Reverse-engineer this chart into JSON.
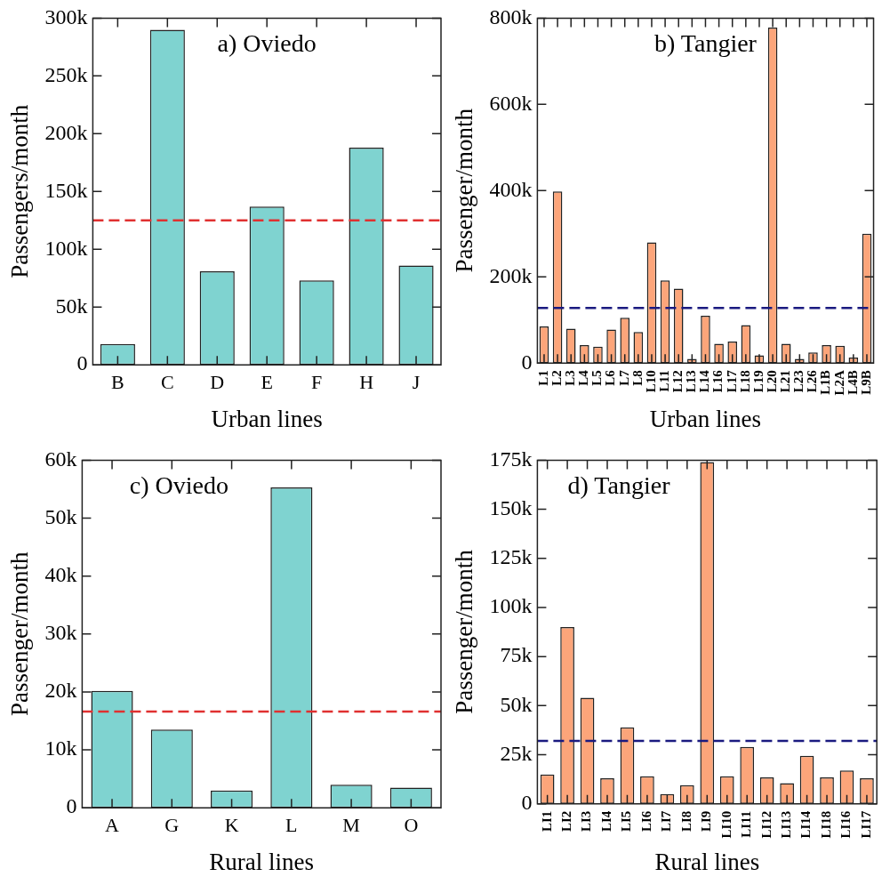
{
  "chart_data": [
    {
      "type": "bar",
      "title": "a) Oviedo",
      "xlabel": "Urban lines",
      "ylabel": "Passengers/month",
      "categories": [
        "B",
        "C",
        "D",
        "E",
        "F",
        "H",
        "J"
      ],
      "values": [
        18000,
        290000,
        81000,
        137000,
        73000,
        188000,
        86000
      ],
      "color": "#7fd3d0",
      "ylim": [
        0,
        300000
      ],
      "yticks": [
        {
          "value": 0,
          "label": "0"
        },
        {
          "value": 50000,
          "label": "50k"
        },
        {
          "value": 100000,
          "label": "100k"
        },
        {
          "value": 150000,
          "label": "150k"
        },
        {
          "value": 200000,
          "label": "200k"
        },
        {
          "value": 250000,
          "label": "250k"
        },
        {
          "value": 300000,
          "label": "300k"
        }
      ],
      "ref_lines": [
        {
          "axis": "y",
          "value": 125000,
          "color": "#e03030",
          "line_style": "dashed"
        }
      ]
    },
    {
      "type": "bar",
      "title": "b) Tangier",
      "xlabel": "Urban lines",
      "ylabel": "Passenger/month",
      "categories": [
        "L1",
        "L2",
        "L3",
        "L4",
        "L5",
        "L6",
        "L7",
        "L8",
        "L10",
        "L11",
        "L12",
        "L13",
        "L14",
        "L16",
        "L17",
        "L18",
        "L19",
        "L20",
        "L21",
        "L23",
        "L26",
        "L1B",
        "L2A",
        "L4B",
        "L9B"
      ],
      "values": [
        85000,
        398000,
        80000,
        42000,
        38000,
        78000,
        105000,
        72000,
        280000,
        192000,
        173000,
        10000,
        110000,
        45000,
        50000,
        88000,
        18000,
        778000,
        45000,
        10000,
        25000,
        42000,
        40000,
        13000,
        300000
      ],
      "color": "#fca57a",
      "ylim": [
        0,
        800000
      ],
      "yticks": [
        {
          "value": 0,
          "label": "0"
        },
        {
          "value": 200000,
          "label": "200k"
        },
        {
          "value": 400000,
          "label": "400k"
        },
        {
          "value": 600000,
          "label": "600k"
        },
        {
          "value": 800000,
          "label": "800k"
        }
      ],
      "ref_lines": [
        {
          "axis": "y",
          "value": 128000,
          "color": "#1a1a80",
          "line_style": "dashed"
        }
      ]
    },
    {
      "type": "bar",
      "title": "c) Oviedo",
      "xlabel": "Rural lines",
      "ylabel": "Passenger/month",
      "categories": [
        "A",
        "G",
        "K",
        "L",
        "M",
        "O"
      ],
      "values": [
        20200,
        13500,
        3000,
        55300,
        4000,
        3500
      ],
      "color": "#7fd3d0",
      "ylim": [
        0,
        60000
      ],
      "yticks": [
        {
          "value": 0,
          "label": "0"
        },
        {
          "value": 10000,
          "label": "10k"
        },
        {
          "value": 20000,
          "label": "20k"
        },
        {
          "value": 30000,
          "label": "30k"
        },
        {
          "value": 40000,
          "label": "40k"
        },
        {
          "value": 50000,
          "label": "50k"
        },
        {
          "value": 60000,
          "label": "60k"
        }
      ],
      "ref_lines": [
        {
          "axis": "y",
          "value": 16600,
          "color": "#e03030",
          "line_style": "dashed"
        }
      ]
    },
    {
      "type": "bar",
      "title": "d) Tangier",
      "xlabel": "Rural lines",
      "ylabel": "Passenger/month",
      "categories": [
        "LI1",
        "LI2",
        "LI3",
        "LI4",
        "LI5",
        "LI6",
        "LI7",
        "LI8",
        "LI9",
        "LI10",
        "LI11",
        "LI12",
        "LI13",
        "LI14",
        "LI18",
        "LI16",
        "LI17"
      ],
      "values": [
        15000,
        90000,
        54000,
        13000,
        39000,
        14000,
        5000,
        9500,
        174000,
        14000,
        29000,
        13500,
        10500,
        24500,
        13500,
        17000,
        13000
      ],
      "color": "#fca57a",
      "ylim": [
        0,
        175000
      ],
      "yticks": [
        {
          "value": 0,
          "label": "0"
        },
        {
          "value": 25000,
          "label": "25k"
        },
        {
          "value": 50000,
          "label": "50k"
        },
        {
          "value": 75000,
          "label": "75k"
        },
        {
          "value": 100000,
          "label": "100k"
        },
        {
          "value": 125000,
          "label": "125k"
        },
        {
          "value": 150000,
          "label": "150k"
        },
        {
          "value": 175000,
          "label": "175k"
        }
      ],
      "ref_lines": [
        {
          "axis": "y",
          "value": 32000,
          "color": "#1a1a80",
          "line_style": "dashed"
        }
      ]
    }
  ]
}
